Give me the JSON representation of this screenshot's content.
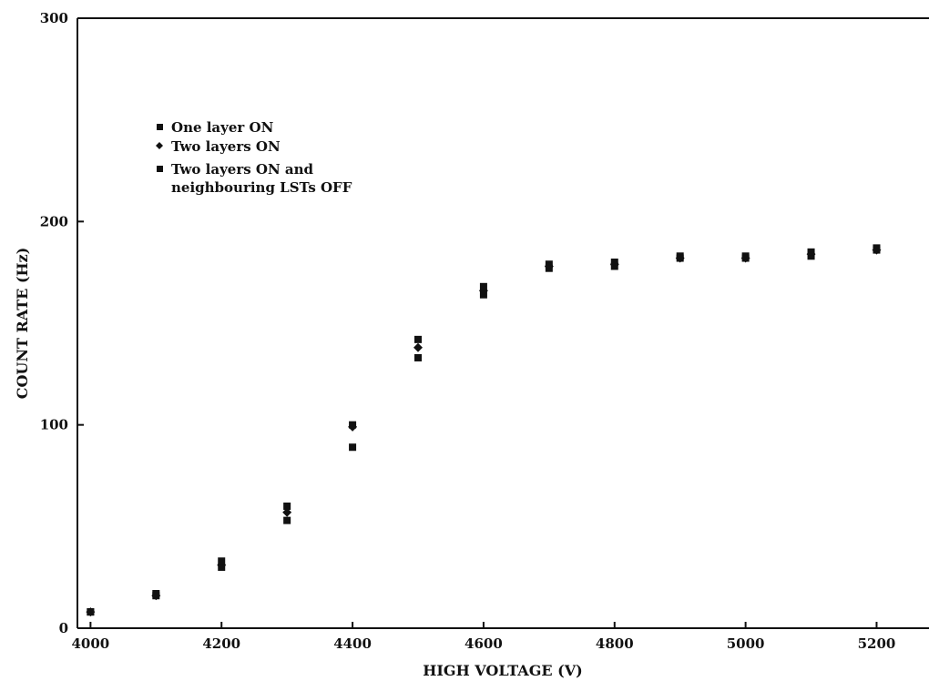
{
  "chart_data": {
    "type": "scatter",
    "title": "",
    "xlabel": "HIGH VOLTAGE (V)",
    "ylabel": "COUNT RATE (Hz)",
    "xlim": [
      3980,
      5280
    ],
    "ylim": [
      0,
      300
    ],
    "xticks": [
      4000,
      4200,
      4400,
      4600,
      4800,
      5000,
      5200
    ],
    "yticks": [
      0,
      100,
      200,
      300
    ],
    "grid": false,
    "legend_position": "top-left",
    "series": [
      {
        "name": "One layer ON",
        "marker": "square",
        "x": [
          4000,
          4100,
          4200,
          4300,
          4400,
          4500,
          4600,
          4700,
          4800,
          4900,
          5000,
          5100,
          5200
        ],
        "y": [
          8,
          16,
          30,
          53,
          89,
          133,
          164,
          177,
          178,
          182,
          182,
          183,
          186
        ]
      },
      {
        "name": "Two layers ON",
        "marker": "diamond",
        "x": [
          4000,
          4100,
          4200,
          4300,
          4400,
          4500,
          4600,
          4700,
          4800,
          4900,
          5000,
          5100,
          5200
        ],
        "y": [
          8,
          16,
          31,
          57,
          99,
          138,
          166,
          178,
          179,
          182,
          182,
          184,
          186
        ]
      },
      {
        "name": "Two layers ON and neighbouring LSTs OFF",
        "marker": "square",
        "x": [
          4000,
          4100,
          4200,
          4300,
          4400,
          4500,
          4600,
          4700,
          4800,
          4900,
          5000,
          5100,
          5200
        ],
        "y": [
          8,
          17,
          33,
          60,
          100,
          142,
          168,
          179,
          180,
          183,
          183,
          185,
          187
        ]
      }
    ]
  }
}
